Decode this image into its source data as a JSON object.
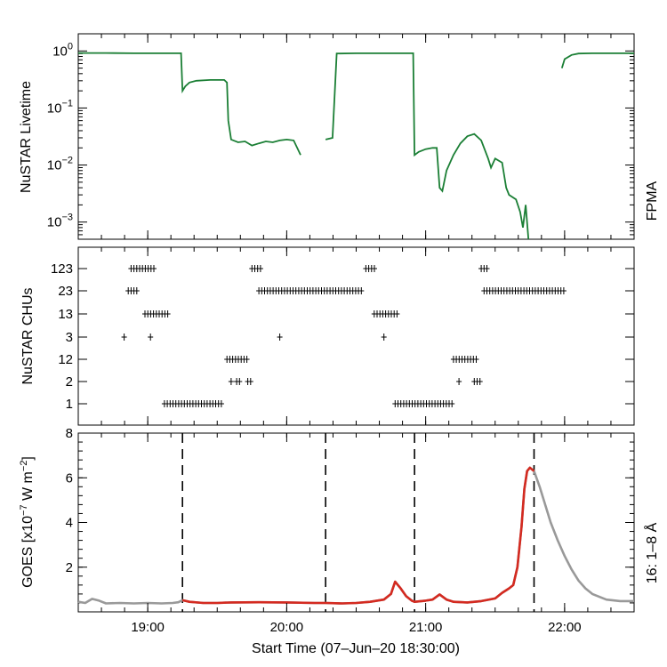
{
  "colors": {
    "fpma": "#1b7f35",
    "goes_active": "#d42a20",
    "goes_inactive": "#999999",
    "axes": "#000000"
  },
  "x_axis": {
    "label": "Start Time (07–Jun–20 18:30:00)",
    "range_hours": [
      18.5,
      22.5
    ],
    "ticks": [
      19.0,
      20.0,
      21.0,
      22.0
    ],
    "tick_labels": [
      "19:00",
      "20:00",
      "21:00",
      "22:00"
    ]
  },
  "markers_hours": [
    19.25,
    20.28,
    20.92,
    21.78
  ],
  "chart_data": [
    {
      "type": "line",
      "title": "",
      "ylabel": "NuSTAR Livetime",
      "yscale": "log",
      "ylim": [
        0.0005,
        2
      ],
      "ytick_values": [
        1,
        0.1,
        0.01,
        0.001
      ],
      "ytick_labels": [
        {
          "base": "10",
          "exp": "0"
        },
        {
          "base": "10",
          "exp": "−1"
        },
        {
          "base": "10",
          "exp": "−2"
        },
        {
          "base": "10",
          "exp": "−3"
        }
      ],
      "right_label": "FPMA",
      "series": [
        {
          "name": "FPMA",
          "segments": [
            [
              [
                18.5,
                0.92
              ],
              [
                18.7,
                0.92
              ],
              [
                18.9,
                0.91
              ],
              [
                19.1,
                0.91
              ],
              [
                19.24,
                0.91
              ],
              [
                19.25,
                0.2
              ],
              [
                19.27,
                0.24
              ],
              [
                19.3,
                0.28
              ],
              [
                19.35,
                0.3
              ],
              [
                19.45,
                0.31
              ],
              [
                19.55,
                0.31
              ],
              [
                19.57,
                0.28
              ],
              [
                19.58,
                0.06
              ],
              [
                19.6,
                0.028
              ],
              [
                19.65,
                0.025
              ],
              [
                19.7,
                0.026
              ],
              [
                19.75,
                0.022
              ],
              [
                19.8,
                0.024
              ],
              [
                19.85,
                0.026
              ],
              [
                19.9,
                0.025
              ],
              [
                19.95,
                0.027
              ],
              [
                20.0,
                0.028
              ],
              [
                20.05,
                0.027
              ],
              [
                20.1,
                0.015
              ]
            ],
            [
              [
                20.28,
                0.028
              ],
              [
                20.33,
                0.03
              ],
              [
                20.36,
                0.9
              ],
              [
                20.5,
                0.91
              ],
              [
                20.7,
                0.91
              ],
              [
                20.91,
                0.91
              ],
              [
                20.92,
                0.015
              ],
              [
                20.95,
                0.017
              ],
              [
                21.0,
                0.019
              ],
              [
                21.05,
                0.02
              ],
              [
                21.08,
                0.02
              ],
              [
                21.1,
                0.004
              ],
              [
                21.12,
                0.0035
              ],
              [
                21.15,
                0.008
              ],
              [
                21.2,
                0.015
              ],
              [
                21.25,
                0.024
              ],
              [
                21.3,
                0.032
              ],
              [
                21.35,
                0.035
              ],
              [
                21.4,
                0.027
              ],
              [
                21.45,
                0.013
              ],
              [
                21.47,
                0.009
              ],
              [
                21.5,
                0.013
              ],
              [
                21.55,
                0.011
              ],
              [
                21.58,
                0.004
              ],
              [
                21.6,
                0.003
              ],
              [
                21.65,
                0.0025
              ],
              [
                21.68,
                0.0015
              ],
              [
                21.7,
                0.0008
              ],
              [
                21.72,
                0.002
              ],
              [
                21.74,
                0.0005
              ]
            ],
            [
              [
                21.98,
                0.5
              ],
              [
                22.0,
                0.72
              ],
              [
                22.05,
                0.85
              ],
              [
                22.1,
                0.9
              ],
              [
                22.2,
                0.91
              ],
              [
                22.35,
                0.91
              ],
              [
                22.5,
                0.91
              ]
            ]
          ]
        }
      ]
    },
    {
      "type": "scatter",
      "title": "",
      "ylabel": "NuSTAR CHUs",
      "categories": [
        "123",
        "23",
        "13",
        "3",
        "12",
        "2",
        "1"
      ],
      "runs": [
        {
          "category": "123",
          "ranges": [
            [
              18.88,
              19.05
            ],
            [
              19.75,
              19.82
            ],
            [
              20.57,
              20.65
            ],
            [
              21.4,
              21.45
            ]
          ]
        },
        {
          "category": "23",
          "ranges": [
            [
              18.86,
              18.93
            ],
            [
              19.8,
              20.55
            ],
            [
              21.42,
              22.0
            ]
          ]
        },
        {
          "category": "13",
          "ranges": [
            [
              18.98,
              19.15
            ],
            [
              20.63,
              20.8
            ]
          ]
        },
        {
          "category": "3",
          "ranges": [
            [
              18.83,
              18.84
            ],
            [
              19.02,
              19.03
            ],
            [
              19.95,
              19.96
            ],
            [
              20.7,
              20.71
            ]
          ]
        },
        {
          "category": "12",
          "ranges": [
            [
              19.57,
              19.72
            ],
            [
              21.2,
              21.38
            ]
          ]
        },
        {
          "category": "2",
          "ranges": [
            [
              19.6,
              19.61
            ],
            [
              19.64,
              19.68
            ],
            [
              19.72,
              19.76
            ],
            [
              21.24,
              21.25
            ],
            [
              21.35,
              21.4
            ]
          ]
        },
        {
          "category": "1",
          "ranges": [
            [
              19.12,
              19.55
            ],
            [
              20.78,
              21.2
            ]
          ]
        }
      ]
    },
    {
      "type": "line",
      "title": "",
      "ylabel_main": "GOES [x10",
      "ylabel_exp1": "−7",
      "ylabel_mid": " W m",
      "ylabel_exp2": "−2",
      "ylabel_end": "]",
      "ylim": [
        0,
        8
      ],
      "yticks": [
        2,
        4,
        6,
        8
      ],
      "ytick_labels": [
        "2",
        "4",
        "6",
        "8"
      ],
      "right_label": "16: 1–8 Å",
      "series": [
        {
          "name": "GOES 16: 1–8 Å",
          "values": [
            [
              18.5,
              0.45
            ],
            [
              18.55,
              0.4
            ],
            [
              18.6,
              0.58
            ],
            [
              18.65,
              0.5
            ],
            [
              18.7,
              0.38
            ],
            [
              18.8,
              0.4
            ],
            [
              18.9,
              0.38
            ],
            [
              19.0,
              0.4
            ],
            [
              19.1,
              0.38
            ],
            [
              19.18,
              0.4
            ],
            [
              19.22,
              0.43
            ],
            [
              19.25,
              0.52
            ],
            [
              19.3,
              0.45
            ],
            [
              19.4,
              0.4
            ],
            [
              19.5,
              0.4
            ],
            [
              19.6,
              0.42
            ],
            [
              19.8,
              0.43
            ],
            [
              20.0,
              0.42
            ],
            [
              20.2,
              0.4
            ],
            [
              20.28,
              0.4
            ],
            [
              20.4,
              0.38
            ],
            [
              20.5,
              0.4
            ],
            [
              20.6,
              0.45
            ],
            [
              20.7,
              0.55
            ],
            [
              20.75,
              0.8
            ],
            [
              20.78,
              1.35
            ],
            [
              20.82,
              1.05
            ],
            [
              20.86,
              0.7
            ],
            [
              20.9,
              0.5
            ],
            [
              20.92,
              0.45
            ],
            [
              21.0,
              0.5
            ],
            [
              21.05,
              0.55
            ],
            [
              21.1,
              0.78
            ],
            [
              21.15,
              0.55
            ],
            [
              21.2,
              0.45
            ],
            [
              21.3,
              0.42
            ],
            [
              21.4,
              0.48
            ],
            [
              21.5,
              0.6
            ],
            [
              21.55,
              0.85
            ],
            [
              21.6,
              1.05
            ],
            [
              21.63,
              1.2
            ],
            [
              21.66,
              2.0
            ],
            [
              21.69,
              3.8
            ],
            [
              21.71,
              5.5
            ],
            [
              21.73,
              6.3
            ],
            [
              21.75,
              6.45
            ],
            [
              21.78,
              6.3
            ],
            [
              21.82,
              5.6
            ],
            [
              21.86,
              4.8
            ],
            [
              21.9,
              4.0
            ],
            [
              21.95,
              3.2
            ],
            [
              22.0,
              2.5
            ],
            [
              22.05,
              1.9
            ],
            [
              22.1,
              1.4
            ],
            [
              22.15,
              1.05
            ],
            [
              22.2,
              0.8
            ],
            [
              22.3,
              0.55
            ],
            [
              22.4,
              0.48
            ],
            [
              22.5,
              0.48
            ]
          ],
          "active_range_hours": [
            19.25,
            21.78
          ]
        }
      ]
    }
  ]
}
